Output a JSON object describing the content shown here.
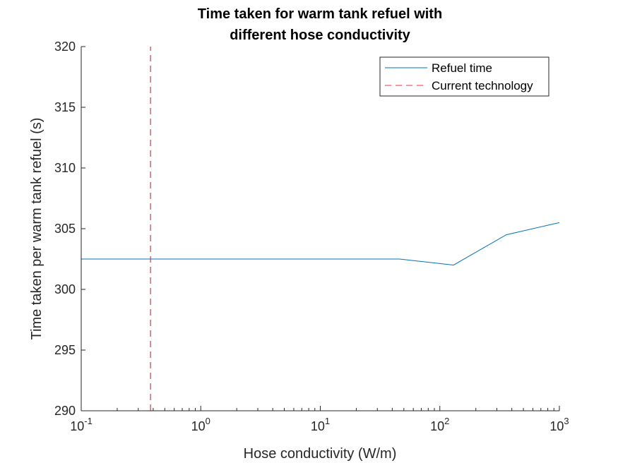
{
  "chart_data": {
    "type": "line",
    "title_line1": "Time taken for warm tank refuel with",
    "title_line2": "different hose conductivity",
    "xlabel": "Hose conductivity (W/m)",
    "ylabel": "Time taken per warm tank refuel (s)",
    "xscale": "log",
    "xlim": [
      0.1,
      1000
    ],
    "ylim": [
      290,
      320
    ],
    "x_ticks": [
      {
        "base": "10",
        "exp": "-1",
        "value": 0.1
      },
      {
        "base": "10",
        "exp": "0",
        "value": 1
      },
      {
        "base": "10",
        "exp": "1",
        "value": 10
      },
      {
        "base": "10",
        "exp": "2",
        "value": 100
      },
      {
        "base": "10",
        "exp": "3",
        "value": 1000
      }
    ],
    "y_ticks": [
      "290",
      "295",
      "300",
      "305",
      "310",
      "315",
      "320"
    ],
    "grid": false,
    "legend_position": "top-right",
    "series": [
      {
        "name": "Refuel time",
        "color": "#0072BD",
        "style": "solid",
        "x": [
          0.1,
          46,
          130,
          360,
          1000
        ],
        "y": [
          302.5,
          302.5,
          302.0,
          304.5,
          305.5
        ]
      },
      {
        "name": "Current technology",
        "color": "#E8303A",
        "style": "dashed",
        "x": [
          0.38,
          0.38
        ],
        "y": [
          290,
          320
        ]
      }
    ]
  }
}
